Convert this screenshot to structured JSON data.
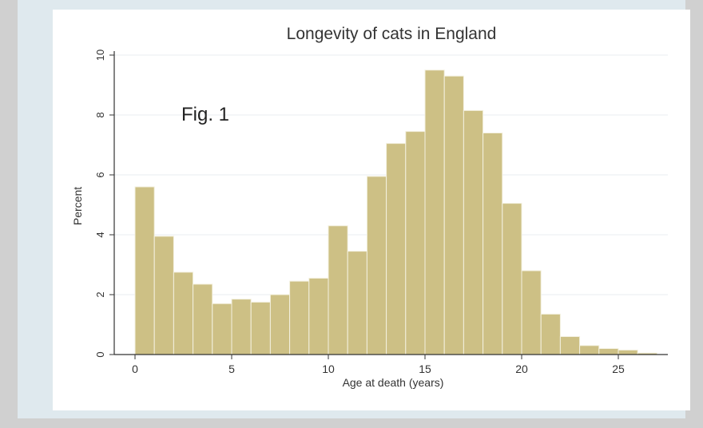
{
  "chart_data": {
    "type": "bar",
    "title": "Longevity of cats in England",
    "annotation": "Fig. 1",
    "xlabel": "Age at death (years)",
    "ylabel": "Percent",
    "xlim": [
      0,
      27
    ],
    "ylim": [
      0,
      10
    ],
    "x_ticks": [
      "0",
      "5",
      "10",
      "15",
      "20",
      "25"
    ],
    "y_ticks": [
      "0",
      "2",
      "4",
      "6",
      "8",
      "10"
    ],
    "grid": true,
    "bin_width": 1,
    "bin_starts": [
      0,
      1,
      2,
      3,
      4,
      5,
      6,
      7,
      8,
      9,
      10,
      11,
      12,
      13,
      14,
      15,
      16,
      17,
      18,
      19,
      20,
      21,
      22,
      23,
      24,
      25,
      26
    ],
    "values": [
      5.6,
      3.95,
      2.75,
      2.35,
      1.7,
      1.85,
      1.75,
      2.0,
      2.45,
      2.55,
      4.3,
      3.45,
      5.95,
      7.05,
      7.45,
      9.5,
      9.3,
      8.15,
      7.4,
      5.05,
      2.8,
      1.35,
      0.6,
      0.3,
      0.2,
      0.15,
      0.05
    ],
    "bar_color": "#cdc085",
    "bar_edge": "#f3f0df"
  }
}
